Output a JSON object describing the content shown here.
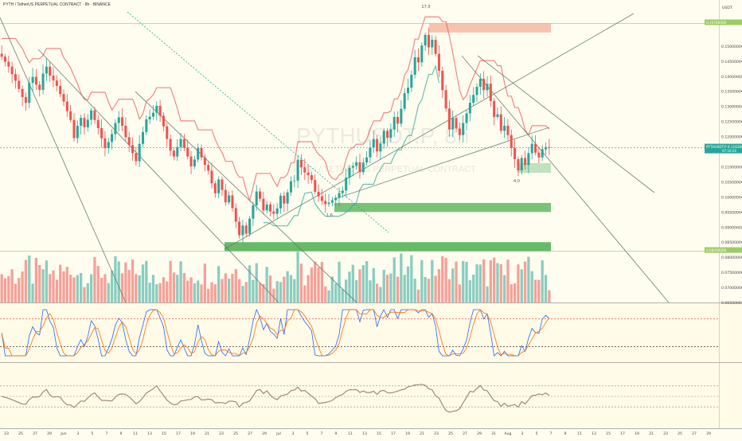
{
  "header": {
    "symbol_line": "PYTH / TetherUS PERPETUAL CONTRACT · 8h · BINANCE",
    "currency": "USDT",
    "watermark_symbol": "PYTHUSDT.P, 8h",
    "watermark_name": "PYTH / TETHERUS PERPETUAL CONTRACT"
  },
  "markers": {
    "swing_high": "17.0",
    "swing_low": "4.0",
    "mid_low": "1.6"
  },
  "price_tag": {
    "symbol": "PYTHUSDT.P",
    "price": "0.11630000",
    "countdown": "07:16:24"
  },
  "level_tags": {
    "top": "0.15740000",
    "bottom": "0.08200000"
  },
  "colors": {
    "bull": "#26a69a",
    "bear": "#ef5350",
    "supply_zone": "#f4b4a0",
    "demand_zone": "#4caf50",
    "stoch_k": "#2962ff",
    "stoch_d": "#ff6d00",
    "rsi": "#a1887f"
  },
  "chart_data": {
    "type": "candlestick",
    "timeframe": "8h",
    "ylim": [
      0.065,
      0.16
    ],
    "y_ticks": [
      "0.15000000",
      "0.14500000",
      "0.14000000",
      "0.13500000",
      "0.13000000",
      "0.12500000",
      "0.12000000",
      "0.11500000",
      "0.11000000",
      "0.10500000",
      "0.10000000",
      "0.09500000",
      "0.09000000",
      "0.08500000",
      "0.08000000",
      "0.07500000",
      "0.07000000",
      "0.06500000"
    ],
    "x_ticks": [
      "23",
      "25",
      "27",
      "29",
      "Jun",
      "3",
      "5",
      "7",
      "9",
      "11",
      "13",
      "15",
      "17",
      "19",
      "21",
      "23",
      "25",
      "27",
      "29",
      "Jul",
      "3",
      "5",
      "7",
      "9",
      "11",
      "13",
      "15",
      "17",
      "19",
      "21",
      "23",
      "25",
      "27",
      "29",
      "31",
      "Aug",
      "3",
      "5",
      "7",
      "9",
      "11",
      "13",
      "15",
      "17",
      "19",
      "21",
      "23",
      "25",
      "27",
      "29"
    ],
    "closes": [
      0.1465,
      0.1448,
      0.1432,
      0.1407,
      0.1385,
      0.1358,
      0.1331,
      0.1312,
      0.1378,
      0.1398,
      0.1372,
      0.1355,
      0.1409,
      0.1432,
      0.1402,
      0.1386,
      0.1368,
      0.1341,
      0.1316,
      0.1284,
      0.1255,
      0.1195,
      0.1236,
      0.1262,
      0.1231,
      0.1256,
      0.1287,
      0.1255,
      0.1228,
      0.1194,
      0.1162,
      0.1182,
      0.1208,
      0.1245,
      0.1264,
      0.1236,
      0.1198,
      0.1172,
      0.1145,
      0.1118,
      0.1176,
      0.1215,
      0.1257,
      0.1266,
      0.1279,
      0.1302,
      0.1269,
      0.1234,
      0.1192,
      0.1153,
      0.1134,
      0.1165,
      0.1192,
      0.1163,
      0.1134,
      0.1101,
      0.1124,
      0.1162,
      0.1131,
      0.1106,
      0.1087,
      0.1045,
      0.1012,
      0.1058,
      0.1023,
      0.0982,
      0.1005,
      0.0963,
      0.0918,
      0.0873,
      0.0905,
      0.0878,
      0.0928,
      0.0972,
      0.1018,
      0.0994,
      0.0955,
      0.0975,
      0.0952,
      0.0944,
      0.0962,
      0.1004,
      0.0978,
      0.1015,
      0.1052,
      0.1054,
      0.1123,
      0.1098,
      0.1081,
      0.1072,
      0.1056,
      0.1017,
      0.1002,
      0.0987,
      0.0976,
      0.0981,
      0.0989,
      0.0997,
      0.1013,
      0.1021,
      0.1064,
      0.1097,
      0.1103,
      0.1115,
      0.1082,
      0.1114,
      0.1131,
      0.1164,
      0.1192,
      0.1151,
      0.1177,
      0.1219,
      0.1196,
      0.1224,
      0.1265,
      0.1243,
      0.1292,
      0.1344,
      0.1362,
      0.1405,
      0.1463,
      0.1446,
      0.1502,
      0.1537,
      0.1496,
      0.1521,
      0.1474,
      0.1418,
      0.1354,
      0.1293,
      0.1224,
      0.1262,
      0.1227,
      0.1205,
      0.1245,
      0.1277,
      0.1312,
      0.1338,
      0.1365,
      0.1392,
      0.1354,
      0.1375,
      0.1318,
      0.1265,
      0.1274,
      0.1219,
      0.1236,
      0.1205,
      0.1162,
      0.1125,
      0.1088,
      0.1129,
      0.1106,
      0.1145,
      0.1176,
      0.1147,
      0.1131,
      0.1158,
      0.1165,
      0.1163
    ]
  }
}
